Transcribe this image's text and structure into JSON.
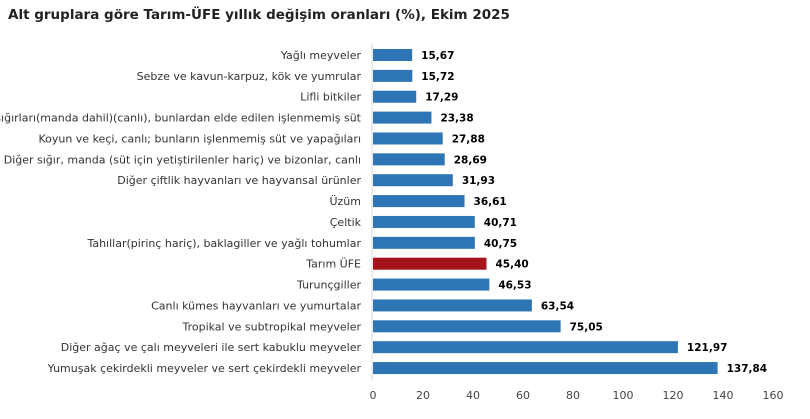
{
  "chart_data": {
    "type": "bar",
    "orientation": "horizontal",
    "title": "Alt gruplara göre Tarım-ÜFE yıllık değişim oranları (%), Ekim 2025",
    "xlabel": "",
    "ylabel": "",
    "xlim": [
      0,
      160
    ],
    "xticks": [
      "0",
      "20",
      "40",
      "60",
      "80",
      "100",
      "120",
      "140",
      "160"
    ],
    "grid": false,
    "legend": "none",
    "categories": [
      "Yağlı meyveler",
      "Sebze ve kavun-karpuz, kök ve yumrular",
      "Lifli bitkiler",
      "Süt sığırları(manda dahil)(canlı), bunlardan elde edilen işlenmemiş süt",
      "Koyun ve keçi, canlı; bunların işlenmemiş süt ve yapağıları",
      "Diğer sığır, manda (süt için yetiştirilenler hariç) ve bizonlar, canlı",
      "Diğer çiftlik hayvanları ve hayvansal ürünler",
      "Üzüm",
      "Çeltik",
      "Tahıllar(pirinç hariç), baklagiller ve yağlı tohumlar",
      "Tarım ÜFE",
      "Turunçgiller",
      "Canlı kümes hayvanları ve yumurtalar",
      "Tropikal ve subtropikal meyveler",
      "Diğer ağaç ve çalı meyveleri ile sert kabuklu meyveler",
      "Yumuşak çekirdekli meyveler ve sert çekirdekli meyveler"
    ],
    "values": [
      15.67,
      15.72,
      17.29,
      23.38,
      27.88,
      28.69,
      31.93,
      36.61,
      40.71,
      40.75,
      45.4,
      46.53,
      63.54,
      75.05,
      121.97,
      137.84
    ],
    "value_labels": [
      "15,67",
      "15,72",
      "17,29",
      "23,38",
      "27,88",
      "28,69",
      "31,93",
      "36,61",
      "40,71",
      "40,75",
      "45,40",
      "46,53",
      "63,54",
      "75,05",
      "121,97",
      "137,84"
    ],
    "highlight_category": "Tarım ÜFE",
    "colors": {
      "bar": "#2e75b6",
      "highlight": "#a5141b",
      "axis": "#d9d9d9"
    }
  }
}
